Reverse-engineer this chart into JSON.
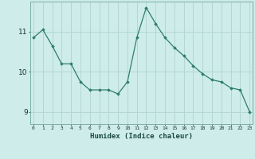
{
  "x": [
    0,
    1,
    2,
    3,
    4,
    5,
    6,
    7,
    8,
    9,
    10,
    11,
    12,
    13,
    14,
    15,
    16,
    17,
    18,
    19,
    20,
    21,
    22,
    23
  ],
  "y": [
    10.85,
    11.05,
    10.65,
    10.2,
    10.2,
    9.75,
    9.55,
    9.55,
    9.55,
    9.45,
    9.75,
    10.85,
    11.6,
    11.2,
    10.85,
    10.6,
    10.4,
    10.15,
    9.95,
    9.8,
    9.75,
    9.6,
    9.55,
    9.0
  ],
  "line_color": "#2e7d6e",
  "marker": "D",
  "marker_size": 1.8,
  "bg_color": "#ceecea",
  "grid_color": "#b0d4d0",
  "xlabel": "Humidex (Indice chaleur)",
  "ylabel": "",
  "ylim": [
    8.7,
    11.75
  ],
  "yticks": [
    9,
    10,
    11
  ],
  "xticks": [
    0,
    1,
    2,
    3,
    4,
    5,
    6,
    7,
    8,
    9,
    10,
    11,
    12,
    13,
    14,
    15,
    16,
    17,
    18,
    19,
    20,
    21,
    22,
    23
  ],
  "xlim": [
    -0.3,
    23.3
  ]
}
